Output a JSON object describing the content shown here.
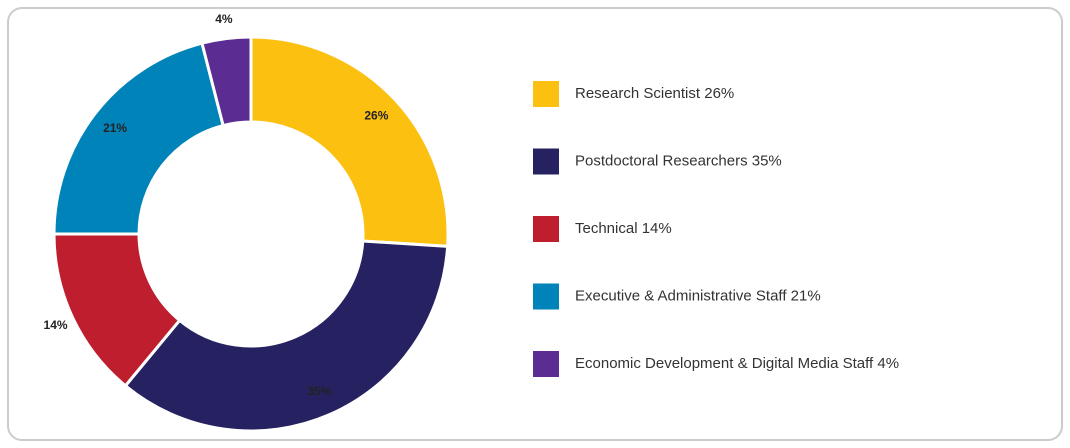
{
  "chart_data": {
    "type": "donut",
    "categories": [
      "Research Scientist 26%",
      "Postdoctoral Researchers 35%",
      "Technical 14%",
      "Executive & Administrative Staff 21%",
      "Economic Development & Digital Media Staff 4%"
    ],
    "values": [
      26,
      35,
      14,
      21,
      4
    ],
    "value_labels": [
      "26%",
      "35%",
      "14%",
      "21%",
      "4%"
    ],
    "colors": [
      "#fcc010",
      "#262262",
      "#be1e2d",
      "#0083b9",
      "#5b2c91"
    ]
  }
}
